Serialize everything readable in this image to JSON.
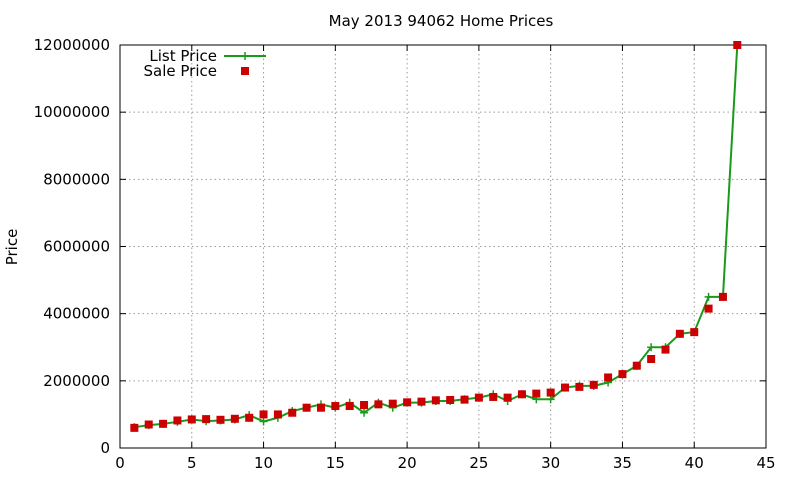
{
  "chart_data": {
    "type": "line",
    "title": "May 2013 94062 Home Prices",
    "xlabel": "",
    "ylabel": "Price",
    "xlim": [
      0,
      45
    ],
    "ylim": [
      0,
      12000000
    ],
    "x_ticks": [
      "0",
      "5",
      "10",
      "15",
      "20",
      "25",
      "30",
      "35",
      "40",
      "45"
    ],
    "y_ticks": [
      "0",
      "2000000",
      "4000000",
      "6000000",
      "8000000",
      "10000000",
      "12000000"
    ],
    "grid": true,
    "legend_position": "top-left",
    "x": [
      1,
      2,
      3,
      4,
      5,
      6,
      7,
      8,
      9,
      10,
      11,
      12,
      13,
      14,
      15,
      16,
      17,
      18,
      19,
      20,
      21,
      22,
      23,
      24,
      25,
      26,
      27,
      28,
      29,
      30,
      31,
      32,
      33,
      34,
      35,
      36,
      37,
      38,
      39,
      40,
      41,
      42,
      43
    ],
    "series": [
      {
        "name": "List Price",
        "style": "line+cross",
        "color": "#1a9a1a",
        "values": [
          620000,
          680000,
          720000,
          780000,
          850000,
          800000,
          820000,
          850000,
          980000,
          790000,
          900000,
          1100000,
          1200000,
          1300000,
          1200000,
          1350000,
          1050000,
          1350000,
          1200000,
          1350000,
          1350000,
          1400000,
          1400000,
          1450000,
          1500000,
          1600000,
          1400000,
          1600000,
          1450000,
          1450000,
          1800000,
          1850000,
          1850000,
          1950000,
          2200000,
          2450000,
          3000000,
          3000000,
          3400000,
          3450000,
          4500000,
          4500000,
          12000000
        ]
      },
      {
        "name": "Sale Price",
        "style": "square-marker",
        "color": "#cc0000",
        "values": [
          600000,
          700000,
          720000,
          820000,
          850000,
          860000,
          840000,
          870000,
          900000,
          1000000,
          1000000,
          1050000,
          1200000,
          1200000,
          1250000,
          1250000,
          1280000,
          1300000,
          1320000,
          1360000,
          1380000,
          1420000,
          1430000,
          1440000,
          1500000,
          1520000,
          1500000,
          1600000,
          1620000,
          1650000,
          1800000,
          1820000,
          1880000,
          2100000,
          2200000,
          2450000,
          2650000,
          2930000,
          3400000,
          3450000,
          4150000,
          4500000,
          12000000
        ]
      }
    ]
  }
}
